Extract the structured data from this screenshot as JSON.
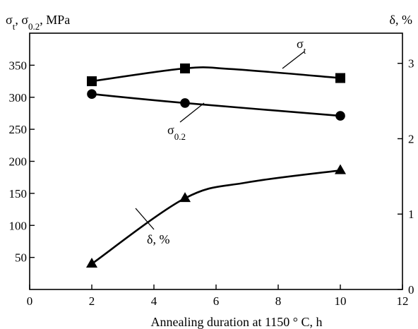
{
  "chart_data": {
    "type": "line",
    "xlabel": "Annealing duration at 1150 ° C, h",
    "ylabel_left": {
      "main": "σ",
      "sub1": "t",
      "mid": ", σ",
      "sub2": "0.2",
      "tail": ", MPa"
    },
    "ylabel_right": "δ, %",
    "xlim": [
      0,
      12
    ],
    "ylim_left": [
      0,
      400
    ],
    "ylim_right": [
      0,
      3.4
    ],
    "x_ticks": [
      {
        "value": 0,
        "label": "0"
      },
      {
        "value": 2,
        "label": "2"
      },
      {
        "value": 4,
        "label": "4"
      },
      {
        "value": 6,
        "label": "6"
      },
      {
        "value": 8,
        "label": "8"
      },
      {
        "value": 10,
        "label": "10"
      },
      {
        "value": 12,
        "label": "12"
      }
    ],
    "y_ticks_left": [
      {
        "value": 50,
        "label": "50"
      },
      {
        "value": 100,
        "label": "100"
      },
      {
        "value": 150,
        "label": "150"
      },
      {
        "value": 200,
        "label": "200"
      },
      {
        "value": 250,
        "label": "250"
      },
      {
        "value": 300,
        "label": "300"
      },
      {
        "value": 350,
        "label": "350"
      }
    ],
    "y_ticks_right": [
      {
        "value": 0,
        "label": "0"
      },
      {
        "value": 1,
        "label": "1"
      },
      {
        "value": 2,
        "label": "2"
      },
      {
        "value": 3,
        "label": "3"
      }
    ],
    "series": [
      {
        "key": "sigma_t",
        "label_main": "σ",
        "label_sub": "t",
        "axis": "left",
        "marker": "square",
        "x": [
          2,
          5,
          10
        ],
        "y": [
          325,
          345,
          330
        ],
        "curve_extra": {
          "x": 6.5,
          "y": 344
        }
      },
      {
        "key": "sigma_02",
        "label_main": "σ",
        "label_sub": "0.2",
        "axis": "left",
        "marker": "circle",
        "x": [
          2,
          5,
          10
        ],
        "y": [
          305,
          291,
          271
        ]
      },
      {
        "key": "delta",
        "label_main": "δ, %",
        "label_sub": "",
        "axis": "right",
        "marker": "triangle",
        "x": [
          2,
          5,
          10
        ],
        "y": [
          0.34,
          1.21,
          1.58
        ],
        "curve_extra": {
          "x": 7,
          "y": 1.42
        }
      }
    ]
  }
}
